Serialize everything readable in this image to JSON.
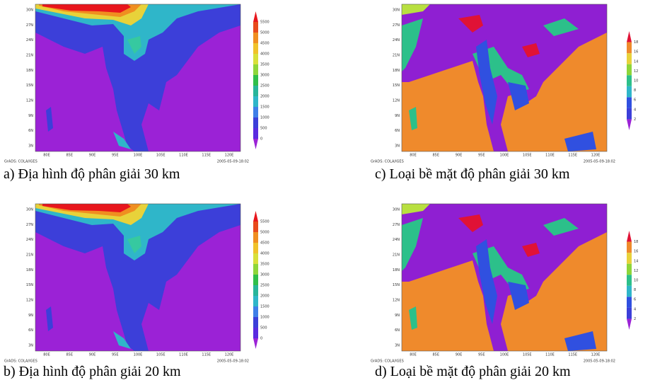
{
  "panels": [
    {
      "caption": "a) Địa hình độ phân giải 30 km",
      "colorbar": [
        "5500",
        "5000",
        "4500",
        "4000",
        "3500",
        "3000",
        "2500",
        "2000",
        "1500",
        "1000",
        "500",
        "0"
      ],
      "lat": [
        "30N",
        "27N",
        "24N",
        "21N",
        "18N",
        "15N",
        "12N",
        "9N",
        "6N",
        "3N"
      ],
      "lon": [
        "80E",
        "85E",
        "90E",
        "95E",
        "100E",
        "105E",
        "110E",
        "115E",
        "120E"
      ],
      "credit_left": "GrADS: COLA/IGES",
      "credit_right": "2005-05-09-18:02"
    },
    {
      "caption": "c) Loại bề mặt độ phân giải 30 km",
      "colorbar": [
        "18",
        "16",
        "14",
        "12",
        "10",
        "8",
        "6",
        "4",
        "2"
      ],
      "lat": [
        "30N",
        "27N",
        "24N",
        "21N",
        "18N",
        "15N",
        "12N",
        "9N",
        "6N",
        "3N"
      ],
      "lon": [
        "80E",
        "85E",
        "90E",
        "95E",
        "100E",
        "105E",
        "110E",
        "115E",
        "120E"
      ],
      "credit_left": "GrADS: COLA/IGES",
      "credit_right": "2005-05-09-18:02"
    },
    {
      "caption": "b) Địa hình độ phân giải 20 km",
      "colorbar": [
        "5500",
        "5000",
        "4500",
        "4000",
        "3500",
        "3000",
        "2500",
        "2000",
        "1500",
        "1000",
        "500",
        "0"
      ],
      "lat": [
        "30N",
        "27N",
        "24N",
        "21N",
        "18N",
        "15N",
        "12N",
        "9N",
        "6N",
        "3N"
      ],
      "lon": [
        "80E",
        "85E",
        "90E",
        "95E",
        "100E",
        "105E",
        "110E",
        "115E",
        "120E"
      ],
      "credit_left": "GrADS: COLA/IGES",
      "credit_right": "2005-05-09-18:02"
    },
    {
      "caption": "d) Loại bề mặt độ phân giải 20 km",
      "colorbar": [
        "18",
        "16",
        "14",
        "12",
        "10",
        "8",
        "6",
        "4",
        "2"
      ],
      "lat": [
        "30N",
        "27N",
        "24N",
        "21N",
        "18N",
        "15N",
        "12N",
        "9N",
        "6N",
        "3N"
      ],
      "lon": [
        "80E",
        "85E",
        "90E",
        "95E",
        "100E",
        "105E",
        "110E",
        "115E",
        "120E"
      ],
      "credit_left": "GrADS: COLA/IGES",
      "credit_right": "2005-05-09-18:02"
    }
  ]
}
